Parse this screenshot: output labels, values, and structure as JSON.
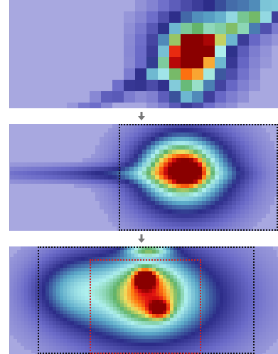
{
  "figure": {
    "panels": [
      {
        "name": "raw-pixelated-heatmap",
        "style": "blocky"
      },
      {
        "name": "refined-heatmap-with-crop",
        "style": "smooth"
      },
      {
        "name": "zoomed-heatmap-with-focus-region",
        "style": "smooth-zoomed"
      }
    ],
    "colors": {
      "background": "#a8a8e0",
      "colormap": [
        "#a8a8e0",
        "#6a6ac8",
        "#2c2c88",
        "#5ba8c8",
        "#aef0ee",
        "#5fb36a",
        "#f0e060",
        "#ff7a10",
        "#e01010",
        "#8a0000"
      ],
      "arrow": "#777777",
      "crop_box": "#111111",
      "focus_box": "#d42020"
    },
    "icons": [
      "down-arrow-icon",
      "down-arrow-icon"
    ]
  }
}
